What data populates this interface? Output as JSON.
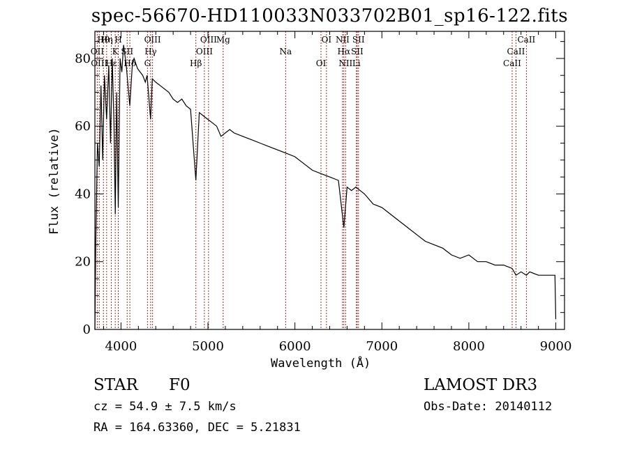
{
  "chart_data": {
    "type": "line",
    "title": "spec-56670-HD110033N033702B01_sp16-122.fits",
    "xlabel": "Wavelength (Å)",
    "ylabel": "Flux (relative)",
    "xlim": [
      3700,
      9100
    ],
    "ylim": [
      0,
      88
    ],
    "xticks": [
      4000,
      5000,
      6000,
      7000,
      8000,
      9000
    ],
    "yticks": [
      0,
      20,
      40,
      60,
      80
    ],
    "series": [
      {
        "name": "flux",
        "x": [
          3700,
          3710,
          3730,
          3750,
          3770,
          3790,
          3810,
          3835,
          3860,
          3880,
          3900,
          3920,
          3934,
          3950,
          3969,
          3990,
          4010,
          4030,
          4060,
          4101,
          4130,
          4150,
          4190,
          4220,
          4250,
          4280,
          4300,
          4340,
          4360,
          4400,
          4450,
          4500,
          4550,
          4600,
          4650,
          4700,
          4750,
          4800,
          4861,
          4900,
          4950,
          5000,
          5050,
          5100,
          5150,
          5200,
          5250,
          5300,
          5400,
          5500,
          5600,
          5700,
          5800,
          5900,
          6000,
          6100,
          6200,
          6300,
          6400,
          6500,
          6563,
          6600,
          6650,
          6700,
          6800,
          6900,
          7000,
          7100,
          7200,
          7300,
          7400,
          7500,
          7600,
          7700,
          7800,
          7900,
          8000,
          8100,
          8200,
          8300,
          8400,
          8498,
          8542,
          8600,
          8662,
          8700,
          8800,
          8900,
          8990,
          9000
        ],
        "values": [
          0,
          25,
          55,
          48,
          72,
          50,
          75,
          62,
          78,
          55,
          80,
          60,
          34,
          70,
          36,
          80,
          76,
          84,
          78,
          66,
          78,
          80,
          77,
          76,
          75,
          73,
          75,
          62,
          74,
          73,
          72,
          71,
          70,
          68,
          67,
          68,
          66,
          65,
          44,
          64,
          63,
          62,
          61,
          60,
          57,
          58,
          59,
          58,
          57,
          56,
          55,
          54,
          53,
          52,
          51,
          49,
          47,
          46,
          45,
          44,
          30,
          42,
          41,
          42,
          40,
          37,
          36,
          34,
          32,
          30,
          28,
          26,
          25,
          24,
          22,
          21,
          22,
          20,
          20,
          19,
          19,
          18,
          16,
          17,
          16,
          17,
          16,
          16,
          16,
          3
        ]
      }
    ],
    "spectral_lines": [
      {
        "label": "Hθ",
        "wl": 3798
      },
      {
        "label": "OII",
        "wl": 3727
      },
      {
        "label": "OIII",
        "wl": 3750
      },
      {
        "label": "Hη",
        "wl": 3835
      },
      {
        "label": "K",
        "wl": 3934
      },
      {
        "label": "Hε",
        "wl": 3889
      },
      {
        "label": "H",
        "wl": 3969
      },
      {
        "label": "SII",
        "wl": 4071
      },
      {
        "label": "Hδ",
        "wl": 4102
      },
      {
        "label": "OIII",
        "wl": 4363
      },
      {
        "label": "Hγ",
        "wl": 4341
      },
      {
        "label": "G",
        "wl": 4305
      },
      {
        "label": "OIII",
        "wl": 5007
      },
      {
        "label": "OIII",
        "wl": 4959
      },
      {
        "label": "Hβ",
        "wl": 4861
      },
      {
        "label": "Mg",
        "wl": 5175
      },
      {
        "label": "Na",
        "wl": 5893
      },
      {
        "label": "OI",
        "wl": 6300
      },
      {
        "label": "OI",
        "wl": 6363
      },
      {
        "label": "Hα",
        "wl": 6563
      },
      {
        "label": "NII",
        "wl": 6583
      },
      {
        "label": "NII",
        "wl": 6548
      },
      {
        "label": "SII",
        "wl": 6716
      },
      {
        "label": "Li",
        "wl": 6707
      },
      {
        "label": "SII",
        "wl": 6731
      },
      {
        "label": "CaII",
        "wl": 8542
      },
      {
        "label": "CaII",
        "wl": 8498
      },
      {
        "label": "CaII",
        "wl": 8662
      }
    ]
  },
  "info": {
    "object_class": "STAR",
    "subclass": "F0",
    "survey": "LAMOST DR3",
    "cz": "cz = 54.9 ± 7.5 km/s",
    "obs_date": "Obs-Date: 20140112",
    "coords": "RA = 164.63360, DEC =   5.21831"
  },
  "colors": {
    "line": "#000000",
    "markers": "#b22222",
    "axis": "#000000"
  }
}
